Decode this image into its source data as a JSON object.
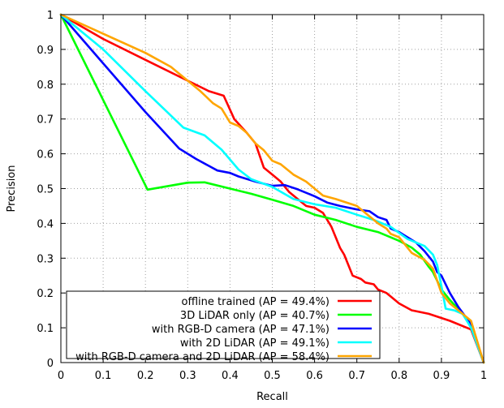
{
  "chart_data": {
    "type": "line",
    "title": "",
    "xlabel": "Recall",
    "ylabel": "Precision",
    "xlim": [
      0,
      1
    ],
    "ylim": [
      0,
      1
    ],
    "xticks": [
      "0",
      "0.1",
      "0.2",
      "0.3",
      "0.4",
      "0.5",
      "0.6",
      "0.7",
      "0.8",
      "0.9",
      "1"
    ],
    "yticks": [
      "0",
      "0.1",
      "0.2",
      "0.3",
      "0.4",
      "0.5",
      "0.6",
      "0.7",
      "0.8",
      "0.9",
      "1"
    ],
    "grid": true,
    "legend_position": "bottom-left",
    "series": [
      {
        "name": "offline trained (AP = 49.4%)",
        "color": "#ff0000",
        "points": [
          [
            0,
            1
          ],
          [
            0.1,
            0.93
          ],
          [
            0.2,
            0.87
          ],
          [
            0.3,
            0.81
          ],
          [
            0.35,
            0.78
          ],
          [
            0.385,
            0.767
          ],
          [
            0.41,
            0.7
          ],
          [
            0.44,
            0.66
          ],
          [
            0.46,
            0.63
          ],
          [
            0.48,
            0.56
          ],
          [
            0.5,
            0.54
          ],
          [
            0.52,
            0.52
          ],
          [
            0.54,
            0.49
          ],
          [
            0.56,
            0.47
          ],
          [
            0.58,
            0.45
          ],
          [
            0.6,
            0.445
          ],
          [
            0.62,
            0.43
          ],
          [
            0.64,
            0.39
          ],
          [
            0.65,
            0.36
          ],
          [
            0.66,
            0.33
          ],
          [
            0.67,
            0.31
          ],
          [
            0.68,
            0.28
          ],
          [
            0.69,
            0.25
          ],
          [
            0.71,
            0.24
          ],
          [
            0.72,
            0.23
          ],
          [
            0.74,
            0.225
          ],
          [
            0.75,
            0.21
          ],
          [
            0.77,
            0.2
          ],
          [
            0.78,
            0.19
          ],
          [
            0.8,
            0.17
          ],
          [
            0.83,
            0.15
          ],
          [
            0.87,
            0.14
          ],
          [
            0.92,
            0.12
          ],
          [
            0.97,
            0.095
          ],
          [
            1,
            0
          ]
        ]
      },
      {
        "name": "3D LiDAR only (AP = 40.7%)",
        "color": "#00ff00",
        "points": [
          [
            0,
            1
          ],
          [
            0.205,
            0.497
          ],
          [
            0.3,
            0.517
          ],
          [
            0.34,
            0.518
          ],
          [
            0.4,
            0.5
          ],
          [
            0.45,
            0.485
          ],
          [
            0.5,
            0.468
          ],
          [
            0.55,
            0.45
          ],
          [
            0.6,
            0.425
          ],
          [
            0.65,
            0.41
          ],
          [
            0.7,
            0.39
          ],
          [
            0.75,
            0.375
          ],
          [
            0.8,
            0.35
          ],
          [
            0.83,
            0.33
          ],
          [
            0.85,
            0.31
          ],
          [
            0.87,
            0.275
          ],
          [
            0.88,
            0.26
          ],
          [
            0.9,
            0.21
          ],
          [
            0.92,
            0.18
          ],
          [
            0.95,
            0.14
          ],
          [
            0.97,
            0.11
          ],
          [
            1,
            0
          ]
        ]
      },
      {
        "name": "with RGB-D camera (AP = 47.1%)",
        "color": "#0000ff",
        "points": [
          [
            0,
            1
          ],
          [
            0.1,
            0.86
          ],
          [
            0.2,
            0.72
          ],
          [
            0.28,
            0.615
          ],
          [
            0.32,
            0.585
          ],
          [
            0.37,
            0.552
          ],
          [
            0.4,
            0.545
          ],
          [
            0.42,
            0.535
          ],
          [
            0.46,
            0.52
          ],
          [
            0.5,
            0.508
          ],
          [
            0.53,
            0.51
          ],
          [
            0.56,
            0.498
          ],
          [
            0.6,
            0.478
          ],
          [
            0.63,
            0.46
          ],
          [
            0.66,
            0.45
          ],
          [
            0.7,
            0.44
          ],
          [
            0.73,
            0.435
          ],
          [
            0.75,
            0.418
          ],
          [
            0.77,
            0.41
          ],
          [
            0.78,
            0.385
          ],
          [
            0.8,
            0.375
          ],
          [
            0.82,
            0.36
          ],
          [
            0.84,
            0.345
          ],
          [
            0.86,
            0.32
          ],
          [
            0.88,
            0.29
          ],
          [
            0.89,
            0.26
          ],
          [
            0.9,
            0.25
          ],
          [
            0.92,
            0.2
          ],
          [
            0.94,
            0.16
          ],
          [
            0.97,
            0.11
          ],
          [
            1,
            0
          ]
        ]
      },
      {
        "name": "with 2D LiDAR (AP = 49.1%)",
        "color": "#00ffff",
        "points": [
          [
            0,
            1
          ],
          [
            0.1,
            0.9
          ],
          [
            0.2,
            0.78
          ],
          [
            0.29,
            0.675
          ],
          [
            0.34,
            0.653
          ],
          [
            0.38,
            0.612
          ],
          [
            0.42,
            0.555
          ],
          [
            0.45,
            0.527
          ],
          [
            0.5,
            0.505
          ],
          [
            0.55,
            0.47
          ],
          [
            0.6,
            0.455
          ],
          [
            0.65,
            0.445
          ],
          [
            0.7,
            0.425
          ],
          [
            0.74,
            0.41
          ],
          [
            0.78,
            0.39
          ],
          [
            0.82,
            0.355
          ],
          [
            0.86,
            0.335
          ],
          [
            0.88,
            0.31
          ],
          [
            0.89,
            0.28
          ],
          [
            0.9,
            0.22
          ],
          [
            0.91,
            0.155
          ],
          [
            0.93,
            0.15
          ],
          [
            0.95,
            0.14
          ],
          [
            0.97,
            0.1
          ],
          [
            1,
            0
          ]
        ]
      },
      {
        "name": "with RGB-D camera and 2D LiDAR (AP = 58.4%)",
        "color": "#ffa500",
        "points": [
          [
            0,
            1
          ],
          [
            0.1,
            0.945
          ],
          [
            0.2,
            0.89
          ],
          [
            0.26,
            0.85
          ],
          [
            0.3,
            0.81
          ],
          [
            0.33,
            0.78
          ],
          [
            0.36,
            0.745
          ],
          [
            0.38,
            0.73
          ],
          [
            0.4,
            0.69
          ],
          [
            0.42,
            0.68
          ],
          [
            0.44,
            0.66
          ],
          [
            0.46,
            0.63
          ],
          [
            0.48,
            0.61
          ],
          [
            0.5,
            0.58
          ],
          [
            0.52,
            0.57
          ],
          [
            0.55,
            0.54
          ],
          [
            0.58,
            0.52
          ],
          [
            0.6,
            0.5
          ],
          [
            0.62,
            0.48
          ],
          [
            0.65,
            0.47
          ],
          [
            0.7,
            0.45
          ],
          [
            0.73,
            0.42
          ],
          [
            0.75,
            0.4
          ],
          [
            0.77,
            0.385
          ],
          [
            0.78,
            0.37
          ],
          [
            0.8,
            0.36
          ],
          [
            0.83,
            0.315
          ],
          [
            0.86,
            0.295
          ],
          [
            0.88,
            0.27
          ],
          [
            0.9,
            0.2
          ],
          [
            0.92,
            0.17
          ],
          [
            0.95,
            0.14
          ],
          [
            0.97,
            0.12
          ],
          [
            1,
            0
          ]
        ]
      }
    ]
  }
}
